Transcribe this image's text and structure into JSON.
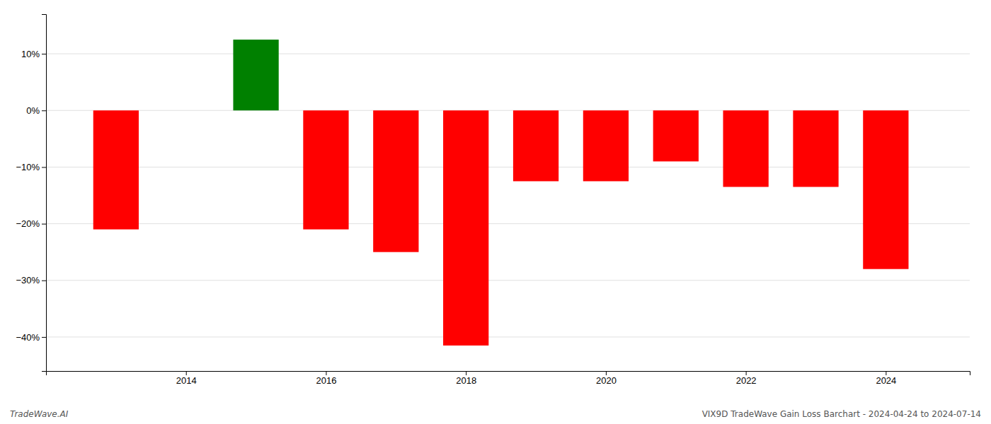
{
  "chart_data": {
    "type": "bar",
    "x": [
      2013,
      2015,
      2016,
      2017,
      2018,
      2019,
      2020,
      2021,
      2022,
      2023,
      2024
    ],
    "values": [
      -21.0,
      12.5,
      -21.0,
      -25.0,
      -41.5,
      -12.5,
      -12.5,
      -9.0,
      -13.5,
      -13.5,
      -28.0
    ],
    "colors": [
      "#ff0000",
      "#008000",
      "#ff0000",
      "#ff0000",
      "#ff0000",
      "#ff0000",
      "#ff0000",
      "#ff0000",
      "#ff0000",
      "#ff0000",
      "#ff0000"
    ],
    "ylim": [
      -46,
      17
    ],
    "yticks": [
      {
        "value": 10,
        "label": "10%"
      },
      {
        "value": 0,
        "label": "0%"
      },
      {
        "value": -10,
        "label": "−10%"
      },
      {
        "value": -20,
        "label": "−20%"
      },
      {
        "value": -30,
        "label": "−30%"
      },
      {
        "value": -40,
        "label": "−40%"
      }
    ],
    "xlim": [
      2012.0,
      2025.2
    ],
    "xticks": [
      2014,
      2016,
      2018,
      2020,
      2022,
      2024
    ],
    "grid": true,
    "annotations": [
      "TradeWave.AI",
      "VIX9D TradeWave Gain Loss Barchart - 2024-04-24 to 2024-07-14"
    ]
  }
}
